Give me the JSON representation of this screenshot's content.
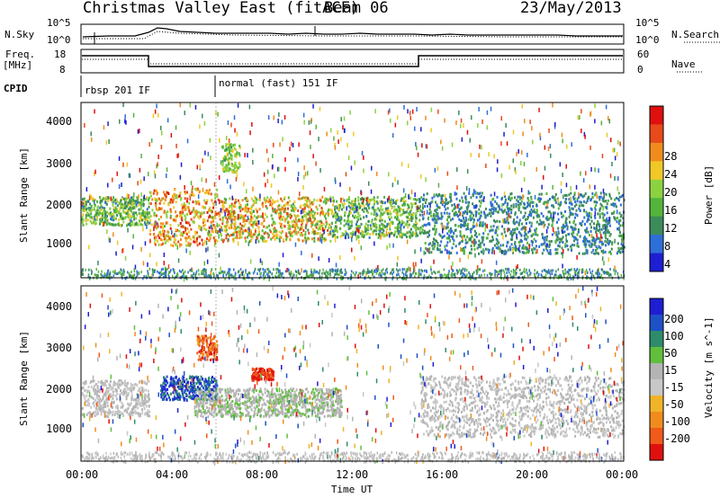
{
  "header": {
    "title": "Christmas Valley East (fitACF)",
    "beam": "Beam 06",
    "date": "23/May/2013"
  },
  "strip_nsky": {
    "left_label": "N.Sky",
    "right_label": "N.Search",
    "left_ticks": [
      "10^5",
      "10^0"
    ],
    "right_ticks": [
      "10^5",
      "10^0"
    ]
  },
  "strip_freq": {
    "left_label_1": "Freq.",
    "left_label_2": "[MHz]",
    "right_label": "Nave",
    "left_ticks": [
      "18",
      "8"
    ],
    "right_ticks": [
      "60",
      "0"
    ]
  },
  "cpid": {
    "label": "CPID",
    "modes": [
      {
        "name": "rbsp 201 IF",
        "start_hour": 0
      },
      {
        "name": "normal (fast) 151 IF",
        "start_hour": 6
      }
    ]
  },
  "time_axis": {
    "title": "Time UT",
    "ticks": [
      "00:00",
      "04:00",
      "08:00",
      "12:00",
      "16:00",
      "20:00",
      "00:00"
    ]
  },
  "colors": {
    "power_scale": [
      "#1e1ed2",
      "#2e6ed8",
      "#3c8c5a",
      "#55b43c",
      "#8cd240",
      "#f0c828",
      "#f08c1e",
      "#e84a1a",
      "#e01010"
    ],
    "velocity_scale": [
      "#e01010",
      "#f05a1a",
      "#f08c1e",
      "#f0b428",
      "#c8c8c8",
      "#b4b4b4",
      "#60c03c",
      "#2e8c6a",
      "#1e50c8",
      "#1e1ed2"
    ]
  },
  "chart_data": [
    {
      "type": "heatmap",
      "panel": "power",
      "title": "",
      "xlabel": "Time UT",
      "ylabel": "Slant Range [km]",
      "xlim_hours": [
        0,
        24
      ],
      "ylim_km": [
        180,
        4500
      ],
      "y_ticks": [
        "4000",
        "3000",
        "2000",
        "1000"
      ],
      "colorbar": {
        "label": "Power [dB]",
        "range": [
          0,
          32
        ],
        "ticks": [
          "28",
          "24",
          "20",
          "16",
          "12",
          "8",
          "4"
        ]
      },
      "features": [
        {
          "t_start": 0.0,
          "t_end": 3.0,
          "range_km": [
            1500,
            2200
          ],
          "power_db": [
            6,
            20
          ]
        },
        {
          "t_start": 3.0,
          "t_end": 6.0,
          "range_km": [
            1000,
            2400
          ],
          "power_db": [
            14,
            30
          ]
        },
        {
          "t_start": 6.0,
          "t_end": 11.0,
          "range_km": [
            1100,
            2200
          ],
          "power_db": [
            10,
            28
          ]
        },
        {
          "t_start": 6.2,
          "t_end": 7.0,
          "range_km": [
            2800,
            3500
          ],
          "power_db": [
            10,
            20
          ]
        },
        {
          "t_start": 11.0,
          "t_end": 15.0,
          "range_km": [
            1200,
            2200
          ],
          "power_db": [
            6,
            20
          ]
        },
        {
          "t_start": 15.0,
          "t_end": 24.0,
          "range_km": [
            800,
            2300
          ],
          "power_db": [
            4,
            12
          ]
        }
      ]
    },
    {
      "type": "heatmap",
      "panel": "velocity",
      "title": "",
      "xlabel": "Time UT",
      "ylabel": "Slant Range [km]",
      "xlim_hours": [
        0,
        24
      ],
      "ylim_km": [
        180,
        4500
      ],
      "y_ticks": [
        "4000",
        "3000",
        "2000",
        "1000"
      ],
      "colorbar": {
        "label": "Velocity [m s^-1]",
        "range": [
          -250,
          250
        ],
        "ticks": [
          "200",
          "100",
          "50",
          "15",
          "-15",
          "-50",
          "-100",
          "-200"
        ]
      },
      "features": [
        {
          "t_start": 0.0,
          "t_end": 3.0,
          "range_km": [
            1300,
            2200
          ],
          "velocity": [
            -15,
            15
          ]
        },
        {
          "t_start": 3.5,
          "t_end": 6.0,
          "range_km": [
            1700,
            2300
          ],
          "velocity": [
            100,
            250
          ]
        },
        {
          "t_start": 5.0,
          "t_end": 11.5,
          "range_km": [
            1300,
            2000
          ],
          "velocity": [
            20,
            60
          ]
        },
        {
          "t_start": 5.1,
          "t_end": 6.0,
          "range_km": [
            2700,
            3300
          ],
          "velocity": [
            -250,
            -100
          ]
        },
        {
          "t_start": 7.5,
          "t_end": 8.5,
          "range_km": [
            2200,
            2500
          ],
          "velocity": [
            -250,
            -150
          ]
        },
        {
          "t_start": 15.0,
          "t_end": 24.0,
          "range_km": [
            800,
            2300
          ],
          "velocity": [
            -15,
            15
          ]
        }
      ]
    }
  ]
}
